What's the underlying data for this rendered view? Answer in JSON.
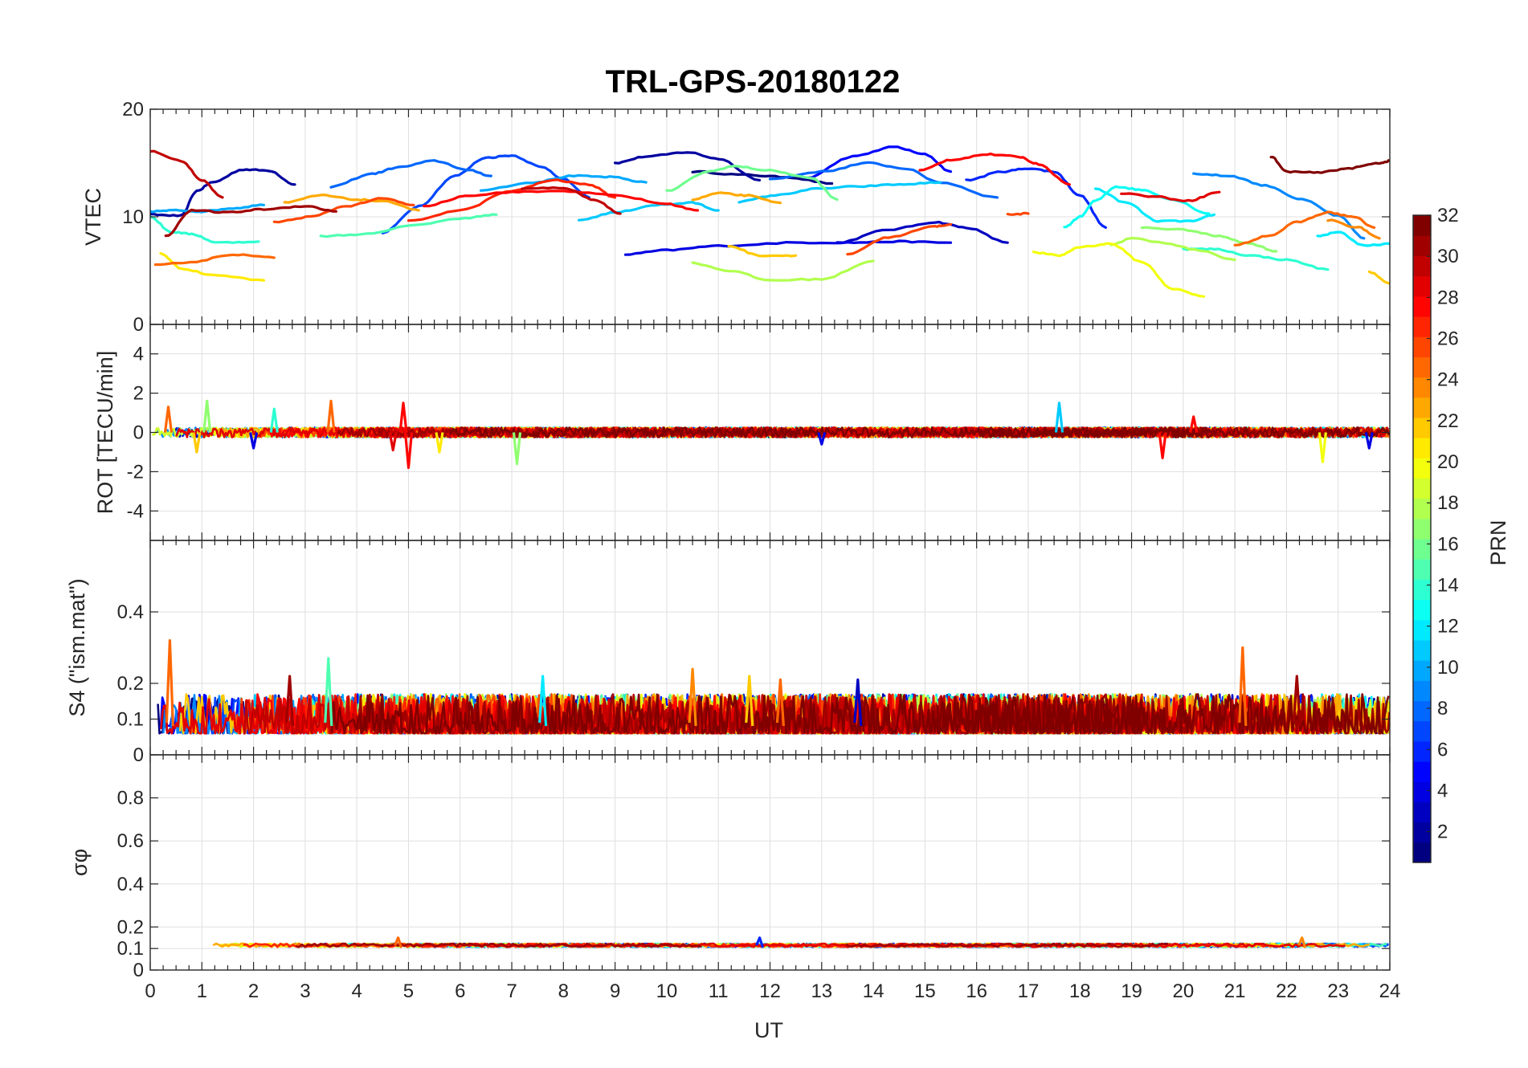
{
  "chart_data": {
    "type": "line",
    "title": "TRL-GPS-20180122",
    "xlabel": "UT",
    "xlim": [
      0,
      24
    ],
    "xticks": [
      "0",
      "1",
      "2",
      "3",
      "4",
      "5",
      "6",
      "7",
      "8",
      "9",
      "10",
      "11",
      "12",
      "13",
      "14",
      "15",
      "16",
      "17",
      "18",
      "19",
      "20",
      "21",
      "22",
      "23",
      "24"
    ],
    "grid": true,
    "colormap": "jet",
    "colorbar": {
      "label": "PRN",
      "range": [
        1,
        32
      ],
      "ticks": [
        "2",
        "4",
        "6",
        "8",
        "10",
        "12",
        "14",
        "16",
        "18",
        "20",
        "22",
        "24",
        "26",
        "28",
        "30",
        "32"
      ],
      "placement": "right"
    },
    "panels": [
      {
        "id": "vtec",
        "ylabel": "VTEC",
        "ylim": [
          0,
          20
        ],
        "yticks": [
          "0",
          "10",
          "20"
        ],
        "tracks": [
          {
            "prn": 1,
            "x": [
              10.5,
              11.5,
              12.3,
              13.2
            ],
            "y": [
              14.2,
              13.9,
              13.7,
              13.1
            ]
          },
          {
            "prn": 2,
            "x": [
              0.0,
              0.6,
              0.9,
              1.2,
              1.8,
              2.3,
              2.8
            ],
            "y": [
              10.2,
              10.1,
              12.4,
              13.2,
              14.4,
              14.3,
              13.0
            ]
          },
          {
            "prn": 2,
            "x": [
              9.0,
              9.6,
              10.4,
              11.0,
              11.8
            ],
            "y": [
              15.0,
              15.6,
              16.0,
              15.4,
              13.4
            ]
          },
          {
            "prn": 3,
            "x": [
              13.3,
              14.3,
              15.2,
              15.8,
              16.6
            ],
            "y": [
              7.6,
              8.8,
              9.5,
              9.0,
              7.6
            ]
          },
          {
            "prn": 4,
            "x": [
              9.2,
              10.0,
              11.0,
              12.5,
              13.5,
              14.5,
              15.5
            ],
            "y": [
              6.5,
              6.9,
              7.3,
              7.6,
              7.6,
              7.7,
              7.6
            ]
          },
          {
            "prn": 5,
            "x": [
              12.7,
              13.6,
              14.4,
              15.0,
              15.5
            ],
            "y": [
              13.6,
              15.6,
              16.5,
              15.8,
              14.2
            ]
          },
          {
            "prn": 6,
            "x": [
              15.8,
              16.5,
              17.0,
              17.5,
              18.0,
              18.5
            ],
            "y": [
              13.4,
              14.2,
              14.5,
              14.2,
              12.0,
              9.0
            ]
          },
          {
            "prn": 7,
            "x": [
              4.5,
              5.2,
              5.9,
              6.5,
              7.0,
              7.6,
              8.0,
              8.5
            ],
            "y": [
              8.5,
              11.0,
              13.8,
              15.5,
              15.7,
              14.6,
              13.5,
              11.8
            ]
          },
          {
            "prn": 8,
            "x": [
              3.5,
              4.3,
              4.8,
              5.5,
              6.2,
              6.6
            ],
            "y": [
              12.8,
              14.0,
              14.6,
              15.2,
              14.3,
              13.8
            ]
          },
          {
            "prn": 8,
            "x": [
              12.0,
              13.0,
              13.9,
              14.6,
              15.3,
              16.4
            ],
            "y": [
              13.5,
              14.2,
              15.0,
              14.5,
              13.2,
              11.8
            ]
          },
          {
            "prn": 9,
            "x": [
              20.2,
              20.9,
              21.6,
              22.3,
              23.0,
              23.5
            ],
            "y": [
              14.0,
              13.8,
              12.9,
              11.6,
              10.1,
              8.0
            ]
          },
          {
            "prn": 10,
            "x": [
              0.0,
              0.5,
              1.0,
              1.6,
              2.2
            ],
            "y": [
              10.5,
              10.6,
              10.5,
              10.8,
              11.1
            ]
          },
          {
            "prn": 10,
            "x": [
              6.4,
              7.4,
              8.2,
              8.9,
              9.6
            ],
            "y": [
              12.5,
              13.2,
              13.8,
              13.7,
              13.2
            ]
          },
          {
            "prn": 11,
            "x": [
              8.3,
              9.0,
              9.8,
              10.5,
              11.0
            ],
            "y": [
              9.7,
              10.4,
              11.1,
              11.3,
              10.6
            ]
          },
          {
            "prn": 11,
            "x": [
              11.4,
              12.1,
              12.9,
              13.6,
              14.5,
              15.3
            ],
            "y": [
              11.4,
              12.0,
              12.6,
              12.8,
              13.0,
              13.2
            ]
          },
          {
            "prn": 12,
            "x": [
              18.3,
              18.9,
              19.5,
              20.2,
              20.6
            ],
            "y": [
              12.6,
              11.3,
              9.6,
              9.6,
              10.2
            ]
          },
          {
            "prn": 12,
            "x": [
              22.6,
              23.0,
              23.5,
              24.0
            ],
            "y": [
              8.2,
              8.6,
              7.3,
              7.5
            ]
          },
          {
            "prn": 13,
            "x": [
              17.7,
              18.0,
              18.3,
              18.7,
              19.2,
              19.8,
              20.5
            ],
            "y": [
              9.0,
              10.0,
              11.5,
              12.8,
              12.5,
              11.6,
              10.3
            ]
          },
          {
            "prn": 14,
            "x": [
              0.0,
              0.4,
              0.8,
              1.3,
              2.1
            ],
            "y": [
              10.0,
              8.6,
              8.4,
              7.6,
              7.7
            ]
          },
          {
            "prn": 14,
            "x": [
              20.0,
              20.6,
              21.3,
              22.0,
              22.8
            ],
            "y": [
              7.0,
              7.0,
              6.4,
              6.0,
              5.1
            ]
          },
          {
            "prn": 15,
            "x": [
              3.3,
              4.2,
              5.2,
              6.1,
              6.7
            ],
            "y": [
              8.2,
              8.4,
              9.3,
              9.9,
              10.2
            ]
          },
          {
            "prn": 16,
            "x": [
              10.0,
              10.8,
              11.3,
              12.0,
              12.8,
              13.3
            ],
            "y": [
              12.4,
              14.2,
              14.7,
              14.3,
              13.6,
              11.6
            ]
          },
          {
            "prn": 17,
            "x": [
              19.2,
              20.0,
              20.7,
              21.3,
              21.8
            ],
            "y": [
              9.0,
              8.8,
              8.2,
              7.5,
              6.8
            ]
          },
          {
            "prn": 18,
            "x": [
              10.5,
              11.2,
              12.0,
              13.0,
              14.0
            ],
            "y": [
              5.7,
              5.0,
              4.1,
              4.2,
              5.9
            ]
          },
          {
            "prn": 18,
            "x": [
              18.6,
              19.0,
              19.6,
              20.3,
              21.0
            ],
            "y": [
              7.4,
              8.0,
              7.6,
              6.9,
              6.0
            ]
          },
          {
            "prn": 20,
            "x": [
              17.1,
              17.6,
              18.0,
              18.6,
              19.2,
              19.8,
              20.4
            ],
            "y": [
              6.7,
              6.4,
              7.2,
              7.5,
              5.8,
              3.3,
              2.6
            ]
          },
          {
            "prn": 21,
            "x": [
              0.2,
              0.6,
              1.2,
              2.2
            ],
            "y": [
              6.6,
              5.2,
              4.6,
              4.1
            ]
          },
          {
            "prn": 22,
            "x": [
              11.2,
              11.8,
              12.5
            ],
            "y": [
              7.3,
              6.4,
              6.4
            ]
          },
          {
            "prn": 22,
            "x": [
              23.6,
              24.0
            ],
            "y": [
              4.9,
              3.8
            ]
          },
          {
            "prn": 23,
            "x": [
              2.6,
              3.3,
              4.0,
              4.6,
              5.2
            ],
            "y": [
              11.3,
              12.0,
              11.6,
              11.4,
              10.6
            ]
          },
          {
            "prn": 23,
            "x": [
              10.5,
              11.0,
              11.5,
              12.2
            ],
            "y": [
              11.6,
              12.2,
              12.0,
              11.3
            ]
          },
          {
            "prn": 24,
            "x": [
              22.8,
              23.4,
              23.8
            ],
            "y": [
              9.7,
              9.0,
              8.0
            ]
          },
          {
            "prn": 25,
            "x": [
              0.1,
              0.8,
              1.6,
              2.4
            ],
            "y": [
              5.5,
              5.8,
              6.5,
              6.2
            ]
          },
          {
            "prn": 25,
            "x": [
              21.0,
              21.7,
              22.2,
              22.8,
              23.3,
              23.7
            ],
            "y": [
              7.4,
              8.3,
              9.5,
              10.4,
              10.0,
              9.0
            ]
          },
          {
            "prn": 26,
            "x": [
              2.4,
              3.1,
              3.8,
              4.5,
              5.1
            ],
            "y": [
              9.5,
              10.0,
              11.0,
              11.7,
              11.1
            ]
          },
          {
            "prn": 26,
            "x": [
              13.5,
              14.3,
              15.2,
              15.5
            ],
            "y": [
              6.5,
              8.1,
              9.1,
              9.3
            ]
          },
          {
            "prn": 26,
            "x": [
              16.6,
              17.0
            ],
            "y": [
              10.2,
              10.3
            ]
          },
          {
            "prn": 27,
            "x": [
              5.0,
              6.0,
              7.0,
              7.8,
              8.5,
              9.0
            ],
            "y": [
              9.6,
              10.6,
              12.4,
              13.4,
              13.0,
              11.8
            ]
          },
          {
            "prn": 28,
            "x": [
              5.3,
              6.2,
              7.0,
              8.0,
              9.0,
              10.0,
              10.6
            ],
            "y": [
              11.0,
              12.0,
              12.3,
              12.4,
              12.0,
              11.2,
              10.6
            ]
          },
          {
            "prn": 28,
            "x": [
              14.9,
              15.5,
              16.2,
              16.8,
              17.2,
              17.8
            ],
            "y": [
              14.3,
              15.3,
              15.8,
              15.6,
              14.9,
              13.0
            ]
          },
          {
            "prn": 29,
            "x": [
              18.8,
              19.4,
              20.1,
              20.7
            ],
            "y": [
              12.2,
              11.9,
              11.5,
              12.3
            ]
          },
          {
            "prn": 30,
            "x": [
              0.0,
              0.6,
              1.0,
              1.4
            ],
            "y": [
              16.1,
              15.2,
              13.4,
              11.8
            ]
          },
          {
            "prn": 30,
            "x": [
              7.2,
              8.0,
              8.6,
              9.1
            ],
            "y": [
              12.6,
              12.7,
              11.6,
              10.3
            ]
          },
          {
            "prn": 31,
            "x": [
              0.3,
              0.8,
              1.5,
              2.2,
              3.0,
              3.6
            ],
            "y": [
              8.2,
              10.6,
              10.4,
              10.7,
              11.0,
              10.5
            ]
          },
          {
            "prn": 32,
            "x": [
              21.7,
              22.0,
              22.6,
              23.2,
              23.8,
              24.0
            ],
            "y": [
              15.6,
              14.2,
              14.1,
              14.5,
              15.0,
              15.2
            ]
          }
        ]
      },
      {
        "id": "rot",
        "ylabel": "ROT [TECU/min]",
        "ylim": [
          -5.5,
          5.5
        ],
        "yticks": [
          "-4",
          "-2",
          "0",
          "2",
          "4"
        ],
        "band": {
          "center": 0,
          "spread": 0.25
        },
        "spikes": [
          {
            "x": 0.35,
            "y": 1.3,
            "prn": 25
          },
          {
            "x": 1.1,
            "y": 1.6,
            "prn": 17
          },
          {
            "x": 0.9,
            "y": -1.0,
            "prn": 22
          },
          {
            "x": 2.4,
            "y": 1.2,
            "prn": 14
          },
          {
            "x": 2.0,
            "y": -0.8,
            "prn": 4
          },
          {
            "x": 3.5,
            "y": 1.6,
            "prn": 25
          },
          {
            "x": 4.9,
            "y": 1.5,
            "prn": 28
          },
          {
            "x": 5.0,
            "y": -1.8,
            "prn": 28
          },
          {
            "x": 4.7,
            "y": -0.9,
            "prn": 29
          },
          {
            "x": 5.6,
            "y": -1.0,
            "prn": 21
          },
          {
            "x": 7.1,
            "y": -1.6,
            "prn": 17
          },
          {
            "x": 13.0,
            "y": -0.6,
            "prn": 4
          },
          {
            "x": 17.6,
            "y": 1.5,
            "prn": 11
          },
          {
            "x": 19.6,
            "y": -1.3,
            "prn": 28
          },
          {
            "x": 20.2,
            "y": 0.8,
            "prn": 28
          },
          {
            "x": 22.7,
            "y": -1.5,
            "prn": 20
          },
          {
            "x": 23.6,
            "y": -0.8,
            "prn": 4
          }
        ]
      },
      {
        "id": "s4",
        "ylabel": "S4 (\"ism.mat\")",
        "ylim": [
          0,
          0.6
        ],
        "yticks": [
          "0",
          "0.1",
          "0.2",
          "0.4"
        ],
        "band": {
          "center": 0.09,
          "spread": 0.05
        },
        "spikes": [
          {
            "x": 0.38,
            "y": 0.32,
            "prn": 25
          },
          {
            "x": 2.7,
            "y": 0.22,
            "prn": 31
          },
          {
            "x": 3.45,
            "y": 0.27,
            "prn": 15
          },
          {
            "x": 7.6,
            "y": 0.22,
            "prn": 12
          },
          {
            "x": 10.5,
            "y": 0.24,
            "prn": 24
          },
          {
            "x": 11.6,
            "y": 0.22,
            "prn": 22
          },
          {
            "x": 12.2,
            "y": 0.21,
            "prn": 25
          },
          {
            "x": 13.7,
            "y": 0.21,
            "prn": 3
          },
          {
            "x": 21.15,
            "y": 0.3,
            "prn": 25
          },
          {
            "x": 22.2,
            "y": 0.22,
            "prn": 31
          }
        ]
      },
      {
        "id": "sigphi",
        "ylabel": "σφ",
        "ylim": [
          0,
          1.0
        ],
        "yticks": [
          "0",
          "0.1",
          "0.2",
          "0.4",
          "0.6",
          "0.8"
        ],
        "band": {
          "center": 0.115,
          "spread": 0.008
        },
        "spikes": [
          {
            "x": 4.8,
            "y": 0.15,
            "prn": 25
          },
          {
            "x": 11.8,
            "y": 0.15,
            "prn": 6
          },
          {
            "x": 22.3,
            "y": 0.15,
            "prn": 24
          }
        ]
      }
    ]
  }
}
